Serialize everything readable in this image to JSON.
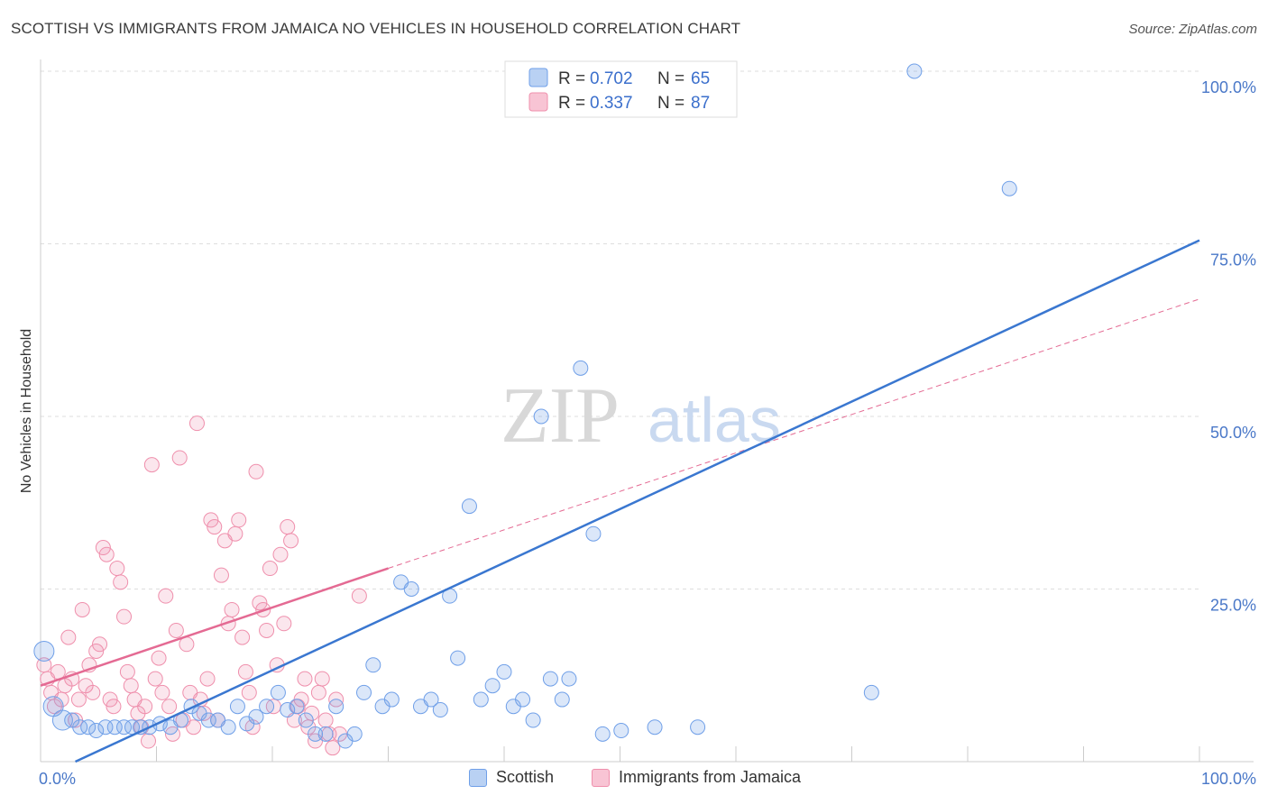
{
  "title": "SCOTTISH VS IMMIGRANTS FROM JAMAICA NO VEHICLES IN HOUSEHOLD CORRELATION CHART",
  "source": "Source: ZipAtlas.com",
  "watermark": {
    "zip": "ZIP",
    "atlas": "atlas"
  },
  "chart_data": {
    "type": "scatter",
    "ylabel": "No Vehicles in Household",
    "xlabel": "",
    "xlim": [
      0,
      100
    ],
    "ylim": [
      0,
      100
    ],
    "x_tick_labels": [
      "0.0%",
      "100.0%"
    ],
    "y_tick_labels": [
      "25.0%",
      "50.0%",
      "75.0%",
      "100.0%"
    ],
    "y_ticks": [
      25,
      50,
      75,
      100
    ],
    "colors": {
      "scottish": "#6f9fe8",
      "jamaica": "#ef8fac",
      "scottish_line": "#3a77d0",
      "jamaica_line": "#e46a93"
    },
    "legend": [
      {
        "r_label": "R =",
        "r_value": "0.702",
        "n_label": "N =",
        "n_value": "65"
      },
      {
        "r_label": "R =",
        "r_value": "0.337",
        "n_label": "N =",
        "n_value": "87"
      }
    ],
    "series": [
      {
        "name": "Scottish",
        "trend": {
          "x0": 3,
          "y0": 0,
          "x1": 100,
          "y1": 75.5
        },
        "points": [
          [
            0.3,
            16
          ],
          [
            1.1,
            8
          ],
          [
            1.9,
            6
          ],
          [
            2.7,
            6
          ],
          [
            3.4,
            5
          ],
          [
            4.1,
            5
          ],
          [
            4.8,
            4.5
          ],
          [
            5.6,
            5
          ],
          [
            6.4,
            5
          ],
          [
            7.2,
            5
          ],
          [
            7.9,
            5
          ],
          [
            8.6,
            5
          ],
          [
            9.4,
            5
          ],
          [
            10.3,
            5.5
          ],
          [
            11.2,
            5
          ],
          [
            12.1,
            6
          ],
          [
            13.0,
            8
          ],
          [
            13.7,
            7
          ],
          [
            14.5,
            6
          ],
          [
            15.3,
            6
          ],
          [
            16.2,
            5
          ],
          [
            17.0,
            8
          ],
          [
            17.8,
            5.5
          ],
          [
            18.6,
            6.5
          ],
          [
            19.5,
            8
          ],
          [
            20.5,
            10
          ],
          [
            21.3,
            7.5
          ],
          [
            22.1,
            8
          ],
          [
            22.9,
            6
          ],
          [
            23.7,
            4
          ],
          [
            24.6,
            4
          ],
          [
            25.5,
            8
          ],
          [
            26.3,
            3
          ],
          [
            27.1,
            4
          ],
          [
            27.9,
            10
          ],
          [
            28.7,
            14
          ],
          [
            29.5,
            8
          ],
          [
            30.3,
            9
          ],
          [
            31.1,
            26
          ],
          [
            32.0,
            25
          ],
          [
            32.8,
            8
          ],
          [
            33.7,
            9
          ],
          [
            34.5,
            7.5
          ],
          [
            35.3,
            24
          ],
          [
            36.0,
            15
          ],
          [
            37.0,
            37
          ],
          [
            38.0,
            9
          ],
          [
            39.0,
            11
          ],
          [
            40.0,
            13
          ],
          [
            40.8,
            8
          ],
          [
            41.6,
            9
          ],
          [
            42.5,
            6
          ],
          [
            43.2,
            50
          ],
          [
            44.0,
            12
          ],
          [
            45.0,
            9
          ],
          [
            45.6,
            12
          ],
          [
            46.6,
            57
          ],
          [
            47.7,
            33
          ],
          [
            48.5,
            4
          ],
          [
            50.1,
            4.5
          ],
          [
            53.0,
            5
          ],
          [
            56.7,
            5
          ],
          [
            71.7,
            10
          ],
          [
            75.4,
            100
          ],
          [
            83.6,
            83
          ]
        ]
      },
      {
        "name": "Immigrants from Jamaica",
        "trend": {
          "x0": 0,
          "y0": 11,
          "x1": 30,
          "y1": 28
        },
        "dashed_trend": {
          "x0": 30,
          "y0": 28,
          "x1": 100,
          "y1": 67
        },
        "points": [
          [
            0.3,
            14
          ],
          [
            0.6,
            12
          ],
          [
            0.9,
            10
          ],
          [
            1.2,
            8
          ],
          [
            1.5,
            13
          ],
          [
            1.8,
            9
          ],
          [
            2.1,
            11
          ],
          [
            2.4,
            18
          ],
          [
            2.7,
            12
          ],
          [
            3.0,
            6
          ],
          [
            3.3,
            9
          ],
          [
            3.6,
            22
          ],
          [
            3.9,
            11
          ],
          [
            4.2,
            14
          ],
          [
            4.5,
            10
          ],
          [
            4.8,
            16
          ],
          [
            5.1,
            17
          ],
          [
            5.4,
            31
          ],
          [
            5.7,
            30
          ],
          [
            6.0,
            9
          ],
          [
            6.3,
            8
          ],
          [
            6.6,
            28
          ],
          [
            6.9,
            26
          ],
          [
            7.2,
            21
          ],
          [
            7.5,
            13
          ],
          [
            7.8,
            11
          ],
          [
            8.1,
            9
          ],
          [
            8.4,
            7
          ],
          [
            8.7,
            5
          ],
          [
            9.0,
            8
          ],
          [
            9.3,
            3
          ],
          [
            9.6,
            43
          ],
          [
            9.9,
            12
          ],
          [
            10.2,
            15
          ],
          [
            10.5,
            10
          ],
          [
            10.8,
            24
          ],
          [
            11.1,
            8
          ],
          [
            11.4,
            4
          ],
          [
            11.7,
            19
          ],
          [
            12.0,
            44
          ],
          [
            12.3,
            6
          ],
          [
            12.6,
            17
          ],
          [
            12.9,
            10
          ],
          [
            13.2,
            5
          ],
          [
            13.5,
            49
          ],
          [
            13.8,
            9
          ],
          [
            14.1,
            7
          ],
          [
            14.4,
            12
          ],
          [
            14.7,
            35
          ],
          [
            15.0,
            34
          ],
          [
            15.3,
            6
          ],
          [
            15.6,
            27
          ],
          [
            15.9,
            32
          ],
          [
            16.2,
            20
          ],
          [
            16.5,
            22
          ],
          [
            16.8,
            33
          ],
          [
            17.1,
            35
          ],
          [
            17.4,
            18
          ],
          [
            17.7,
            13
          ],
          [
            18.0,
            10
          ],
          [
            18.3,
            5
          ],
          [
            18.6,
            42
          ],
          [
            18.9,
            23
          ],
          [
            19.2,
            22
          ],
          [
            19.5,
            19
          ],
          [
            19.8,
            28
          ],
          [
            20.1,
            8
          ],
          [
            20.4,
            14
          ],
          [
            20.7,
            30
          ],
          [
            21.0,
            20
          ],
          [
            21.3,
            34
          ],
          [
            21.6,
            32
          ],
          [
            21.9,
            6
          ],
          [
            22.2,
            8
          ],
          [
            22.5,
            9
          ],
          [
            22.8,
            12
          ],
          [
            23.1,
            5
          ],
          [
            23.4,
            7
          ],
          [
            23.7,
            3
          ],
          [
            24.0,
            10
          ],
          [
            24.3,
            12
          ],
          [
            24.6,
            6
          ],
          [
            24.9,
            4
          ],
          [
            25.2,
            2
          ],
          [
            25.5,
            9
          ],
          [
            25.8,
            4
          ],
          [
            27.5,
            24
          ]
        ]
      }
    ]
  },
  "bottom_legend": [
    {
      "label": "Scottish"
    },
    {
      "label": "Immigrants from Jamaica"
    }
  ]
}
